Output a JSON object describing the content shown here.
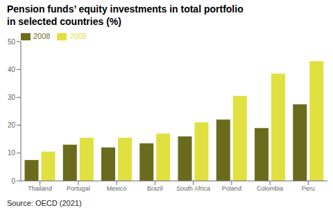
{
  "chart_data": {
    "type": "bar",
    "title": "Pension funds’ equity investments in total portfolio\nin selected countries (%)",
    "annotations": [
      "Source: OECD (2021)"
    ],
    "categories": [
      "Thailand",
      "Portugal",
      "Mexico",
      "Brazil",
      "South Africa",
      "Poland",
      "Colombia",
      "Peru"
    ],
    "series": [
      {
        "name": "2008",
        "color": "#6b6b1e",
        "values": [
          7.5,
          13.0,
          12.0,
          13.5,
          16.0,
          22.0,
          19.0,
          27.5
        ]
      },
      {
        "name": "2009",
        "color": "#e0e040",
        "values": [
          10.5,
          15.5,
          15.5,
          17.0,
          21.0,
          30.5,
          38.5,
          43.0
        ]
      }
    ],
    "ylim": [
      0,
      50
    ],
    "yticks": [
      0,
      10,
      20,
      30,
      40,
      50
    ],
    "grid": false,
    "legend": "upper left"
  }
}
